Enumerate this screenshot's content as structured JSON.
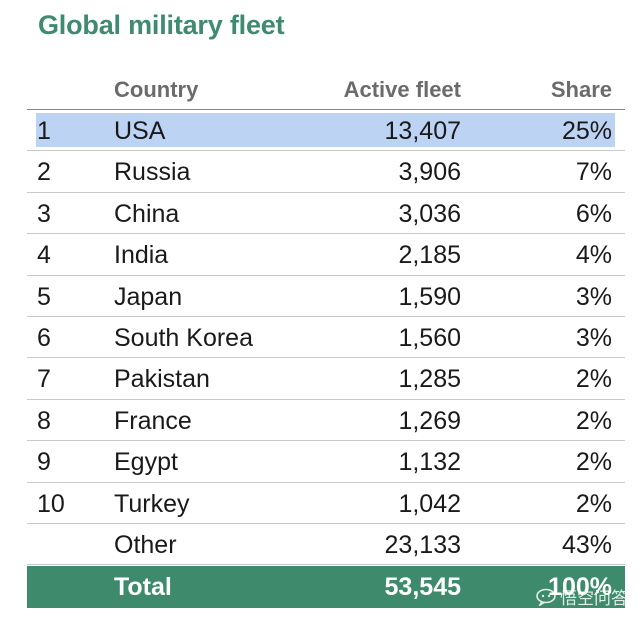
{
  "chart_data": {
    "type": "table",
    "title": "Global military fleet",
    "columns": [
      "Country",
      "Active fleet",
      "Share"
    ],
    "rows": [
      {
        "rank": "1",
        "country": "USA",
        "fleet": "13,407",
        "share": "25%",
        "highlight": true
      },
      {
        "rank": "2",
        "country": "Russia",
        "fleet": "3,906",
        "share": "7%"
      },
      {
        "rank": "3",
        "country": "China",
        "fleet": "3,036",
        "share": "6%"
      },
      {
        "rank": "4",
        "country": "India",
        "fleet": "2,185",
        "share": "4%"
      },
      {
        "rank": "5",
        "country": "Japan",
        "fleet": "1,590",
        "share": "3%"
      },
      {
        "rank": "6",
        "country": "South Korea",
        "fleet": "1,560",
        "share": "3%"
      },
      {
        "rank": "7",
        "country": "Pakistan",
        "fleet": "1,285",
        "share": "2%"
      },
      {
        "rank": "8",
        "country": "France",
        "fleet": "1,269",
        "share": "2%"
      },
      {
        "rank": "9",
        "country": "Egypt",
        "fleet": "1,132",
        "share": "2%"
      },
      {
        "rank": "10",
        "country": "Turkey",
        "fleet": "1,042",
        "share": "2%"
      },
      {
        "rank": "",
        "country": "Other",
        "fleet": "23,133",
        "share": "43%"
      }
    ],
    "total": {
      "label": "Total",
      "fleet": "53,545",
      "share": "100%"
    }
  },
  "colors": {
    "title": "#3f8a70",
    "highlight": "#bcd3f4",
    "total_bg": "#3d8a6c",
    "header_text": "#6b6b6b"
  },
  "watermark": {
    "text": "悟空问答",
    "icon": "speech-bubble-logo"
  }
}
